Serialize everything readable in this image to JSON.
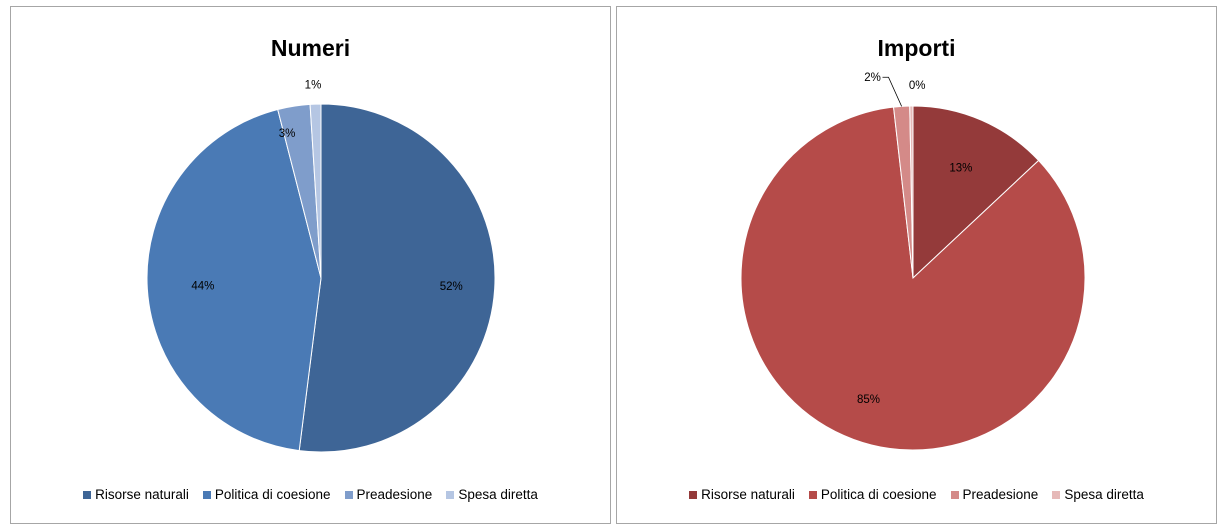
{
  "chart_data": [
    {
      "type": "pie",
      "title": "Numeri",
      "categories": [
        "Risorse naturali",
        "Politica di coesione",
        "Preadesione",
        "Spesa diretta"
      ],
      "values": [
        52,
        44,
        3,
        1
      ],
      "labels": [
        "52%",
        "44%",
        "3%",
        "1%"
      ],
      "colors": [
        "#3e6596",
        "#4a7ab5",
        "#7f9dcb",
        "#b5c6e3"
      ],
      "legend": "bottom"
    },
    {
      "type": "pie",
      "title": "Importi",
      "categories": [
        "Risorse naturali",
        "Politica di coesione",
        "Preadesione",
        "Spesa diretta"
      ],
      "values": [
        13,
        85,
        1.5,
        0.3
      ],
      "labels": [
        "13%",
        "85%",
        "2%",
        "0%"
      ],
      "colors": [
        "#943a3a",
        "#b54b49",
        "#d48a88",
        "#e6b9b8"
      ],
      "legend": "bottom"
    }
  ]
}
